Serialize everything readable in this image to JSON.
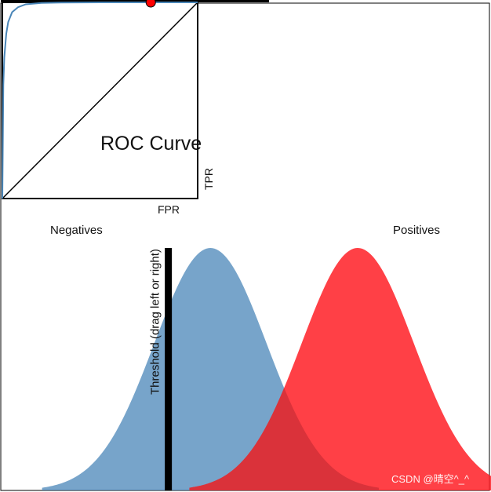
{
  "colors": {
    "negatives": "#4a86b8",
    "positives": "#ff1f26",
    "overlap": "#d9333a",
    "roc_line": "#4a86b8",
    "operating_point": "#ff0000",
    "threshold": "#000000"
  },
  "labels": {
    "roc_title": "ROC Curve",
    "fpr_label": "FPR",
    "tpr_label": "TPR",
    "negatives_label": "Negatives",
    "positives_label": "Positives",
    "threshold_label": "Threshold (drag left or right)",
    "watermark": "CSDN @晴空^_^"
  },
  "chart_data": [
    {
      "type": "line",
      "title": "ROC Curve",
      "xlabel": "FPR",
      "ylabel": "TPR",
      "xlim": [
        0,
        1
      ],
      "ylim": [
        0,
        1
      ],
      "series": [
        {
          "name": "ROC",
          "x": [
            0.0,
            0.005,
            0.01,
            0.02,
            0.03,
            0.05,
            0.08,
            0.12,
            0.2,
            0.3,
            0.5,
            0.7,
            1.0
          ],
          "y": [
            0.0,
            0.58,
            0.72,
            0.84,
            0.9,
            0.95,
            0.975,
            0.99,
            0.997,
            0.999,
            1.0,
            1.0,
            1.0
          ]
        },
        {
          "name": "Chance",
          "x": [
            0.0,
            1.0
          ],
          "y": [
            0.0,
            1.0
          ]
        }
      ],
      "operating_point": {
        "x": 0.76,
        "y": 1.0
      }
    },
    {
      "type": "area",
      "title": "",
      "xlim": [
        -6,
        8
      ],
      "ylim": [
        0,
        1
      ],
      "series": [
        {
          "name": "Negatives",
          "mean": 0.0,
          "std": 1.6
        },
        {
          "name": "Positives",
          "mean": 4.2,
          "std": 1.6
        }
      ],
      "threshold": -1.2
    }
  ]
}
